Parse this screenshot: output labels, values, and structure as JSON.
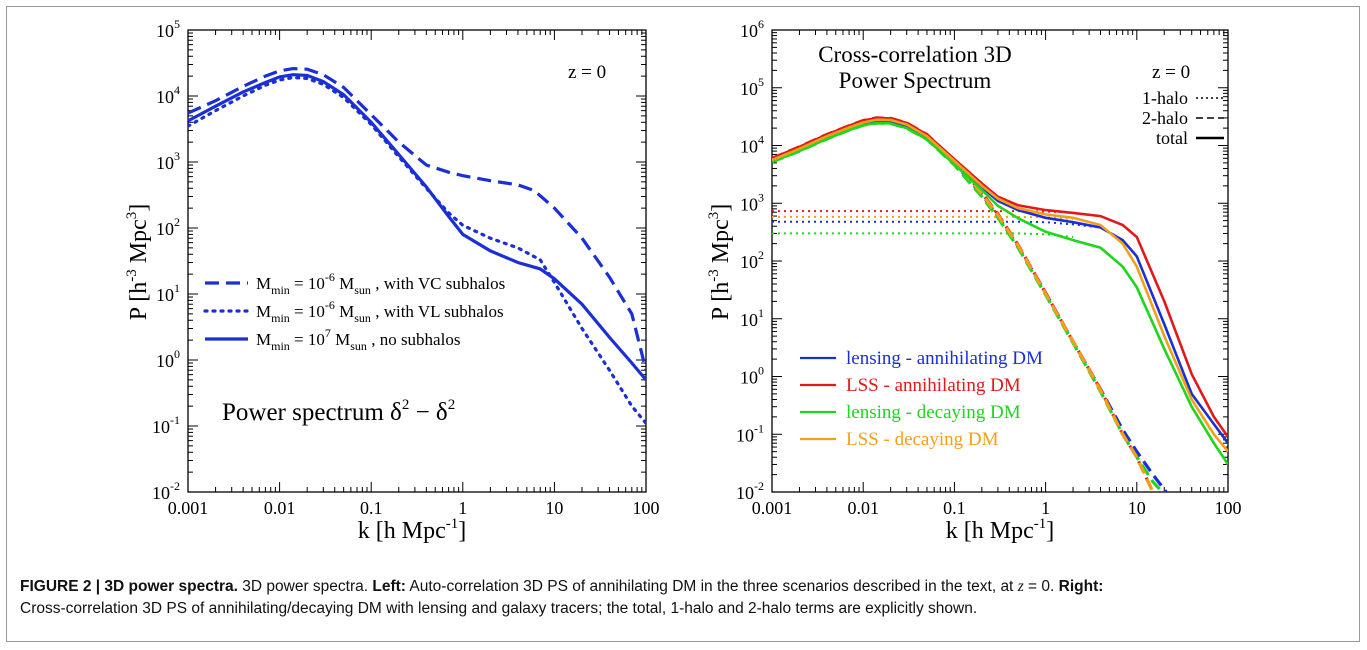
{
  "chart_data": [
    {
      "type": "line",
      "title": "",
      "xlabel": "k [h Mpc",
      "xlabel_sup": "-1",
      "xlabel_tail": "]",
      "ylabel": "P [h",
      "ylabel_sup1": "-3",
      "ylabel_mid": " Mpc",
      "ylabel_sup2": "3",
      "ylabel_tail": "]",
      "x_scale": "log",
      "y_scale": "log",
      "xlim": [
        0.001,
        100
      ],
      "ylim": [
        0.01,
        100000
      ],
      "x_ticks": [
        "0.001",
        "0.01",
        "0.1",
        "1",
        "10",
        "100"
      ],
      "y_ticks": [
        {
          "base": "10",
          "exp": "-2"
        },
        {
          "base": "10",
          "exp": "-1"
        },
        {
          "base": "10",
          "exp": "0"
        },
        {
          "base": "10",
          "exp": "1"
        },
        {
          "base": "10",
          "exp": "2"
        },
        {
          "base": "10",
          "exp": "3"
        },
        {
          "base": "10",
          "exp": "4"
        },
        {
          "base": "10",
          "exp": "5"
        }
      ],
      "annotations": {
        "redshift": "z = 0",
        "ps_text": "Power spectrum δ",
        "ps_sup1": "2",
        "ps_mid": " − δ",
        "ps_sup2": "2"
      },
      "legend_placement": "center-left",
      "legend": [
        {
          "pre": "M",
          "sub": "min",
          "mid": " = 10",
          "sup": "-6",
          "post": " M",
          "sub2": "sun",
          "tail": " , with VC subhalos",
          "style": "dashed"
        },
        {
          "pre": "M",
          "sub": "min",
          "mid": " = 10",
          "sup": "-6",
          "post": " M",
          "sub2": "sun",
          "tail": " , with VL subhalos",
          "style": "dotted"
        },
        {
          "pre": "M",
          "sub": "min",
          "mid": " = 10",
          "sup": "7",
          "post": " M",
          "sub2": "sun",
          "tail": " , no subhalos",
          "style": "solid"
        }
      ],
      "series": [
        {
          "style": "dashed",
          "color": "#1a2fd6",
          "x": [
            0.001,
            0.002,
            0.004,
            0.007,
            0.01,
            0.014,
            0.02,
            0.03,
            0.05,
            0.1,
            0.2,
            0.4,
            0.7,
            1,
            2,
            4,
            6,
            10,
            20,
            40,
            70,
            100
          ],
          "y": [
            5500,
            8500,
            14000,
            20000,
            24000,
            26000,
            25500,
            21000,
            13500,
            5200,
            2000,
            900,
            700,
            620,
            520,
            450,
            370,
            200,
            70,
            18,
            5,
            0.7
          ]
        },
        {
          "style": "dotted",
          "color": "#1a2fd6",
          "x": [
            0.001,
            0.002,
            0.004,
            0.007,
            0.01,
            0.014,
            0.02,
            0.03,
            0.05,
            0.1,
            0.2,
            0.4,
            0.7,
            1,
            2,
            4,
            7,
            10,
            20,
            40,
            70,
            100
          ],
          "y": [
            3500,
            6000,
            10000,
            14500,
            17500,
            19000,
            18500,
            15000,
            9500,
            3700,
            1200,
            400,
            170,
            110,
            70,
            50,
            33,
            15,
            3,
            0.7,
            0.2,
            0.11
          ]
        },
        {
          "style": "solid",
          "color": "#1a2fd6",
          "x": [
            0.001,
            0.002,
            0.004,
            0.007,
            0.01,
            0.014,
            0.02,
            0.03,
            0.05,
            0.1,
            0.2,
            0.4,
            0.7,
            1,
            2,
            4,
            7,
            10,
            20,
            40,
            70,
            100
          ],
          "y": [
            4200,
            7000,
            11500,
            16000,
            19500,
            21000,
            20500,
            16500,
            10500,
            4000,
            1300,
            420,
            150,
            80,
            45,
            30,
            24,
            17,
            7,
            2.2,
            0.9,
            0.5
          ]
        }
      ]
    },
    {
      "type": "line",
      "title": "Cross-correlation 3D",
      "subtitle": "Power Spectrum",
      "xlabel": "k [h Mpc",
      "xlabel_sup": "-1",
      "xlabel_tail": "]",
      "ylabel": "P [h",
      "ylabel_sup1": "-3",
      "ylabel_mid": " Mpc",
      "ylabel_sup2": "3",
      "ylabel_tail": "]",
      "x_scale": "log",
      "y_scale": "log",
      "xlim": [
        0.001,
        100
      ],
      "ylim": [
        0.01,
        1000000
      ],
      "x_ticks": [
        "0.001",
        "0.01",
        "0.1",
        "1",
        "10",
        "100"
      ],
      "y_ticks": [
        {
          "base": "10",
          "exp": "-2"
        },
        {
          "base": "10",
          "exp": "-1"
        },
        {
          "base": "10",
          "exp": "0"
        },
        {
          "base": "10",
          "exp": "1"
        },
        {
          "base": "10",
          "exp": "2"
        },
        {
          "base": "10",
          "exp": "3"
        },
        {
          "base": "10",
          "exp": "4"
        },
        {
          "base": "10",
          "exp": "5"
        },
        {
          "base": "10",
          "exp": "6"
        }
      ],
      "annotations": {
        "redshift": "z = 0"
      },
      "style_legend": [
        {
          "label": "1-halo",
          "style": "dotted"
        },
        {
          "label": "2-halo",
          "style": "dashed"
        },
        {
          "label": "total",
          "style": "solid"
        }
      ],
      "color_legend": [
        {
          "label": "lensing - annihilating DM",
          "color": "#1a2fd6"
        },
        {
          "label": "LSS - annihilating DM",
          "color": "#e01a1a"
        },
        {
          "label": "lensing - decaying DM",
          "color": "#1ed61e"
        },
        {
          "label": "LSS - decaying DM",
          "color": "#f2a01a"
        }
      ],
      "colors": {
        "blue": "#1a2fd6",
        "red": "#e01a1a",
        "green": "#1ed61e",
        "orange": "#f2a01a"
      },
      "series": [
        {
          "name": "lensing - annihilating DM",
          "color": "#1a2fd6",
          "total": {
            "x": [
              0.001,
              0.002,
              0.004,
              0.007,
              0.01,
              0.014,
              0.02,
              0.03,
              0.05,
              0.1,
              0.2,
              0.3,
              0.5,
              1,
              2,
              4,
              7,
              10,
              20,
              40,
              70,
              100
            ],
            "y": [
              5500,
              8500,
              14000,
              20000,
              24500,
              27000,
              26500,
              22000,
              14000,
              5200,
              1900,
              1100,
              760,
              560,
              470,
              380,
              230,
              120,
              8,
              0.5,
              0.15,
              0.07
            ]
          },
          "one_halo": {
            "x": [
              0.001,
              0.5,
              1,
              2,
              4
            ],
            "y": [
              480,
              480,
              470,
              430,
              380
            ]
          },
          "two_halo": {
            "x": [
              0.001,
              0.002,
              0.004,
              0.007,
              0.01,
              0.014,
              0.02,
              0.03,
              0.05,
              0.1,
              0.2,
              0.3,
              0.5,
              1,
              2,
              4,
              7,
              10,
              15,
              21
            ],
            "y": [
              5500,
              8500,
              14000,
              20000,
              24500,
              27000,
              26500,
              22000,
              14000,
              5000,
              1400,
              600,
              180,
              28,
              4,
              0.6,
              0.12,
              0.05,
              0.02,
              0.01
            ]
          }
        },
        {
          "name": "LSS - annihilating DM",
          "color": "#e01a1a",
          "total": {
            "x": [
              0.001,
              0.002,
              0.004,
              0.007,
              0.01,
              0.014,
              0.02,
              0.03,
              0.05,
              0.1,
              0.2,
              0.3,
              0.5,
              1,
              2,
              4,
              7,
              10,
              20,
              40,
              70,
              100
            ],
            "y": [
              6000,
              9500,
              15500,
              22000,
              27000,
              30000,
              29500,
              24500,
              15500,
              5800,
              2200,
              1300,
              920,
              760,
              680,
              600,
              420,
              260,
              20,
              1.1,
              0.2,
              0.09
            ]
          },
          "one_halo": {
            "x": [
              0.001,
              0.5,
              1,
              2
            ],
            "y": [
              730,
              730,
              720,
              690
            ]
          },
          "two_halo": {
            "x": [
              0.001,
              0.002,
              0.004,
              0.007,
              0.01,
              0.014,
              0.02,
              0.03,
              0.05,
              0.1,
              0.2,
              0.3,
              0.5,
              1,
              2,
              4,
              7,
              10,
              15
            ],
            "y": [
              6000,
              9500,
              15500,
              22000,
              27000,
              30000,
              29500,
              24500,
              15500,
              5600,
              1500,
              650,
              190,
              28,
              4,
              0.6,
              0.1,
              0.04,
              0.01
            ]
          }
        },
        {
          "name": "lensing - decaying DM",
          "color": "#1ed61e",
          "total": {
            "x": [
              0.001,
              0.002,
              0.004,
              0.007,
              0.01,
              0.014,
              0.02,
              0.03,
              0.05,
              0.1,
              0.2,
              0.3,
              0.5,
              1,
              2,
              4,
              7,
              10,
              20,
              40,
              70,
              100
            ],
            "y": [
              5200,
              8000,
              13000,
              18500,
              22500,
              24500,
              24000,
              20000,
              12800,
              4700,
              1700,
              900,
              550,
              320,
              230,
              170,
              80,
              35,
              3,
              0.3,
              0.07,
              0.03
            ]
          },
          "one_halo": {
            "x": [
              0.001,
              0.5,
              1,
              2
            ],
            "y": [
              300,
              300,
              290,
              260
            ]
          },
          "two_halo": {
            "x": [
              0.001,
              0.002,
              0.004,
              0.007,
              0.01,
              0.014,
              0.02,
              0.03,
              0.05,
              0.1,
              0.2,
              0.3,
              0.5,
              1,
              2,
              4,
              7,
              10,
              15,
              19
            ],
            "y": [
              5200,
              8000,
              13000,
              18500,
              22500,
              24500,
              24000,
              20000,
              12800,
              4600,
              1300,
              560,
              170,
              26,
              3.8,
              0.55,
              0.1,
              0.04,
              0.015,
              0.01
            ]
          }
        },
        {
          "name": "LSS - decaying DM",
          "color": "#f2a01a",
          "total": {
            "x": [
              0.001,
              0.002,
              0.004,
              0.007,
              0.01,
              0.014,
              0.02,
              0.03,
              0.05,
              0.1,
              0.2,
              0.3,
              0.5,
              1,
              2,
              4,
              7,
              10,
              20,
              40,
              70,
              100
            ],
            "y": [
              5600,
              8800,
              14500,
              20500,
              25000,
              28000,
              27500,
              23000,
              14500,
              5400,
              2000,
              1200,
              820,
              640,
              560,
              420,
              200,
              80,
              5,
              0.4,
              0.1,
              0.05
            ]
          },
          "one_halo": {
            "x": [
              0.001,
              0.5,
              1,
              2
            ],
            "y": [
              580,
              580,
              570,
              540
            ]
          },
          "two_halo": {
            "x": [
              0.001,
              0.002,
              0.004,
              0.007,
              0.01,
              0.014,
              0.02,
              0.03,
              0.05,
              0.1,
              0.2,
              0.3,
              0.5,
              1,
              2,
              4,
              7,
              10,
              15
            ],
            "y": [
              5600,
              8800,
              14500,
              20500,
              25000,
              28000,
              27500,
              23000,
              14500,
              5300,
              1450,
              620,
              185,
              27,
              4,
              0.58,
              0.1,
              0.04,
              0.01
            ]
          }
        }
      ]
    }
  ],
  "caption": {
    "figure_label": "FIGURE 2 | 3D power spectra.",
    "intro": " 3D power spectra. ",
    "left_label": "Left:",
    "left_text": " Auto-correlation 3D PS of annihilating DM in the three scenarios described in the text, at ",
    "z_var": "z",
    "z_eq": " = 0. ",
    "right_label": "Right:",
    "right_text": "Cross-correlation 3D PS of annihilating/decaying DM with lensing and galaxy tracers; the total, 1-halo and 2-halo terms are explicitly shown."
  }
}
